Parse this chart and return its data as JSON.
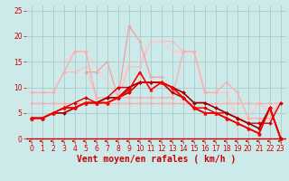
{
  "background_color": "#cdeaea",
  "grid_color": "#aacccc",
  "xlabel": "Vent moyen/en rafales ( km/h )",
  "xlabel_color": "#cc0000",
  "xlabel_fontsize": 7,
  "tick_color": "#cc0000",
  "tick_fontsize": 5.5,
  "xlim": [
    -0.5,
    23.5
  ],
  "ylim": [
    -0.5,
    26
  ],
  "yticks": [
    0,
    5,
    10,
    15,
    20,
    25
  ],
  "xticks": [
    0,
    1,
    2,
    3,
    4,
    5,
    6,
    7,
    8,
    9,
    10,
    11,
    12,
    13,
    14,
    15,
    16,
    17,
    18,
    19,
    20,
    21,
    22,
    23
  ],
  "lines": [
    {
      "x": [
        0,
        1,
        2,
        3,
        4,
        5,
        6,
        7,
        8,
        9,
        10,
        11,
        12,
        13,
        14,
        15,
        16,
        17,
        18,
        19,
        20,
        21,
        22,
        23
      ],
      "y": [
        7,
        7,
        7,
        7,
        7,
        7,
        7,
        7,
        7,
        7,
        7,
        7,
        7,
        7,
        7,
        7,
        7,
        7,
        7,
        7,
        7,
        7,
        7,
        7
      ],
      "color": "#ffaaaa",
      "linewidth": 0.9,
      "marker": "D",
      "markersize": 1.8,
      "zorder": 2
    },
    {
      "x": [
        0,
        1,
        2,
        3,
        4,
        5,
        6,
        7,
        8,
        9,
        10,
        11,
        12,
        13,
        14,
        15,
        16,
        17,
        18,
        19,
        20,
        21,
        22,
        23
      ],
      "y": [
        9,
        9,
        9,
        13,
        17,
        17,
        8,
        8,
        8,
        8,
        8,
        8,
        8,
        8,
        17,
        17,
        9,
        9,
        11,
        9,
        4,
        4,
        4,
        7
      ],
      "color": "#ffaaaa",
      "linewidth": 0.9,
      "marker": "D",
      "markersize": 1.8,
      "zorder": 2
    },
    {
      "x": [
        3,
        4,
        5,
        6,
        7,
        8,
        9,
        10,
        11,
        12,
        13,
        14,
        15,
        16,
        17,
        18,
        19,
        20,
        21,
        22,
        23
      ],
      "y": [
        13,
        13,
        14,
        8,
        8,
        8,
        14,
        14,
        19,
        19,
        19,
        17,
        17,
        9,
        9,
        9,
        4,
        4,
        7,
        5,
        7
      ],
      "color": "#ffbbbb",
      "linewidth": 0.9,
      "marker": "D",
      "markersize": 1.8,
      "zorder": 1
    },
    {
      "x": [
        3,
        4,
        5,
        8,
        9,
        10,
        11,
        12,
        13,
        14,
        15,
        16,
        17,
        18,
        19,
        20,
        21,
        22,
        23
      ],
      "y": [
        15,
        17,
        17,
        8,
        15,
        15,
        19,
        19,
        17,
        17,
        17,
        9,
        9,
        9,
        4,
        4,
        7,
        5,
        7
      ],
      "color": "#ffcccc",
      "linewidth": 0.9,
      "marker": "D",
      "markersize": 1.8,
      "zorder": 1
    },
    {
      "x": [
        5,
        6,
        7,
        8,
        9,
        10,
        11,
        12
      ],
      "y": [
        13,
        13,
        15,
        8,
        22,
        19,
        12,
        12
      ],
      "color": "#ff9999",
      "linewidth": 0.9,
      "marker": "D",
      "markersize": 1.8,
      "zorder": 1
    },
    {
      "x": [
        0,
        1,
        2,
        3,
        4,
        5,
        6,
        7,
        8,
        9,
        10,
        11,
        12,
        13,
        14,
        15,
        16,
        17,
        18,
        19,
        20,
        21,
        22,
        23
      ],
      "y": [
        4,
        4,
        5,
        6,
        7,
        8,
        7,
        8,
        10,
        10,
        11,
        11,
        11,
        10,
        8,
        6,
        6,
        5,
        5,
        4,
        3,
        3,
        3,
        7
      ],
      "color": "#dd0000",
      "linewidth": 1.0,
      "marker": "D",
      "markersize": 2.0,
      "zorder": 4
    },
    {
      "x": [
        0,
        1,
        2,
        3,
        4,
        5,
        6,
        7,
        8,
        9,
        10,
        11,
        12,
        13,
        14,
        15,
        16,
        17,
        18,
        19,
        20,
        21,
        22,
        23
      ],
      "y": [
        4,
        4,
        5,
        5,
        6,
        7,
        7,
        8,
        8,
        10,
        11,
        11,
        11,
        10,
        9,
        7,
        7,
        6,
        5,
        4,
        3,
        2,
        6,
        0
      ],
      "color": "#990000",
      "linewidth": 1.2,
      "marker": "D",
      "markersize": 2.0,
      "zorder": 4
    },
    {
      "x": [
        0,
        1,
        2,
        3,
        4,
        5,
        6,
        7,
        8,
        9,
        10,
        11,
        12,
        13,
        14,
        15,
        16,
        17,
        18,
        19,
        20,
        21,
        22,
        23
      ],
      "y": [
        4,
        4,
        5,
        6,
        6,
        7,
        7,
        7,
        8,
        9,
        11,
        11,
        11,
        9,
        8,
        6,
        5,
        5,
        4,
        3,
        2,
        1,
        6,
        0
      ],
      "color": "#cc0000",
      "linewidth": 1.2,
      "marker": "D",
      "markersize": 2.0,
      "zorder": 5
    },
    {
      "x": [
        0,
        1,
        2,
        3,
        4,
        5,
        6,
        7,
        8,
        9,
        10,
        11,
        12,
        13,
        14,
        15,
        16,
        17,
        18,
        19,
        20,
        21,
        22,
        23
      ],
      "y": [
        4,
        4,
        5,
        6,
        6,
        7,
        7,
        7,
        8,
        9.5,
        13,
        9.5,
        11,
        10,
        8,
        6,
        5,
        5,
        4,
        3,
        2,
        1,
        6,
        0
      ],
      "color": "#ff0000",
      "linewidth": 1.2,
      "marker": "^",
      "markersize": 2.5,
      "zorder": 5
    }
  ]
}
